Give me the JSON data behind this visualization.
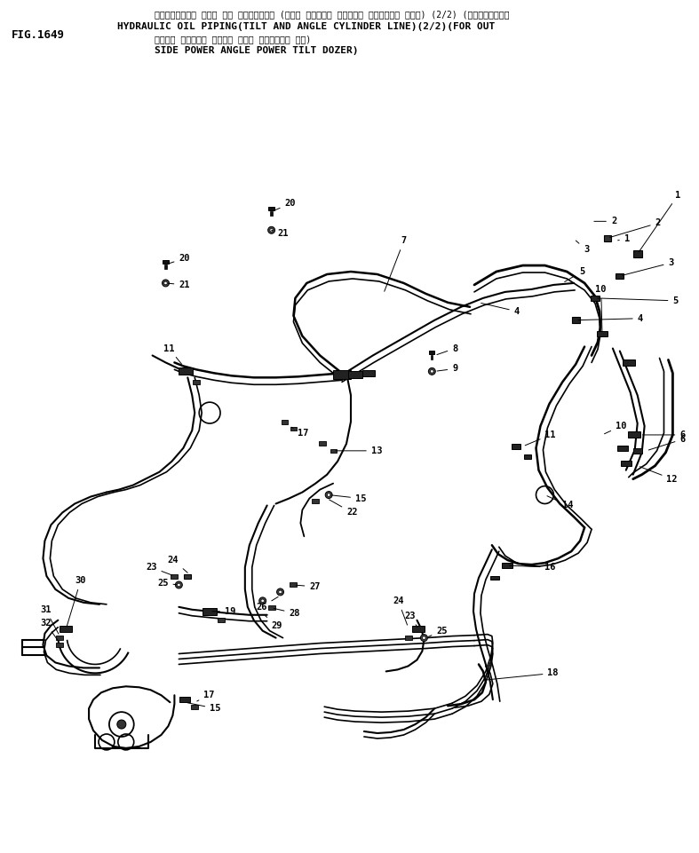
{
  "title_line1": "ハイドロリック オイル バ イビング・ (チルト オヨビ・ アングル シリンダー ライン) (2/2) (アウトサイド・",
  "title_line2": "HYDRAULIC OIL PIPING(TILT AND ANGLE CYLINDER LINE)(2/2)(FOR OUT",
  "title_line3": "パ゙ワー アングル パ゙ワー チルト ドーザー ヨウ)",
  "title_line4": "SIDE POWER ANGLE POWER TILT DOZER)",
  "fig_label": "FIG.1649",
  "bg": "#ffffff",
  "lc": "#000000"
}
